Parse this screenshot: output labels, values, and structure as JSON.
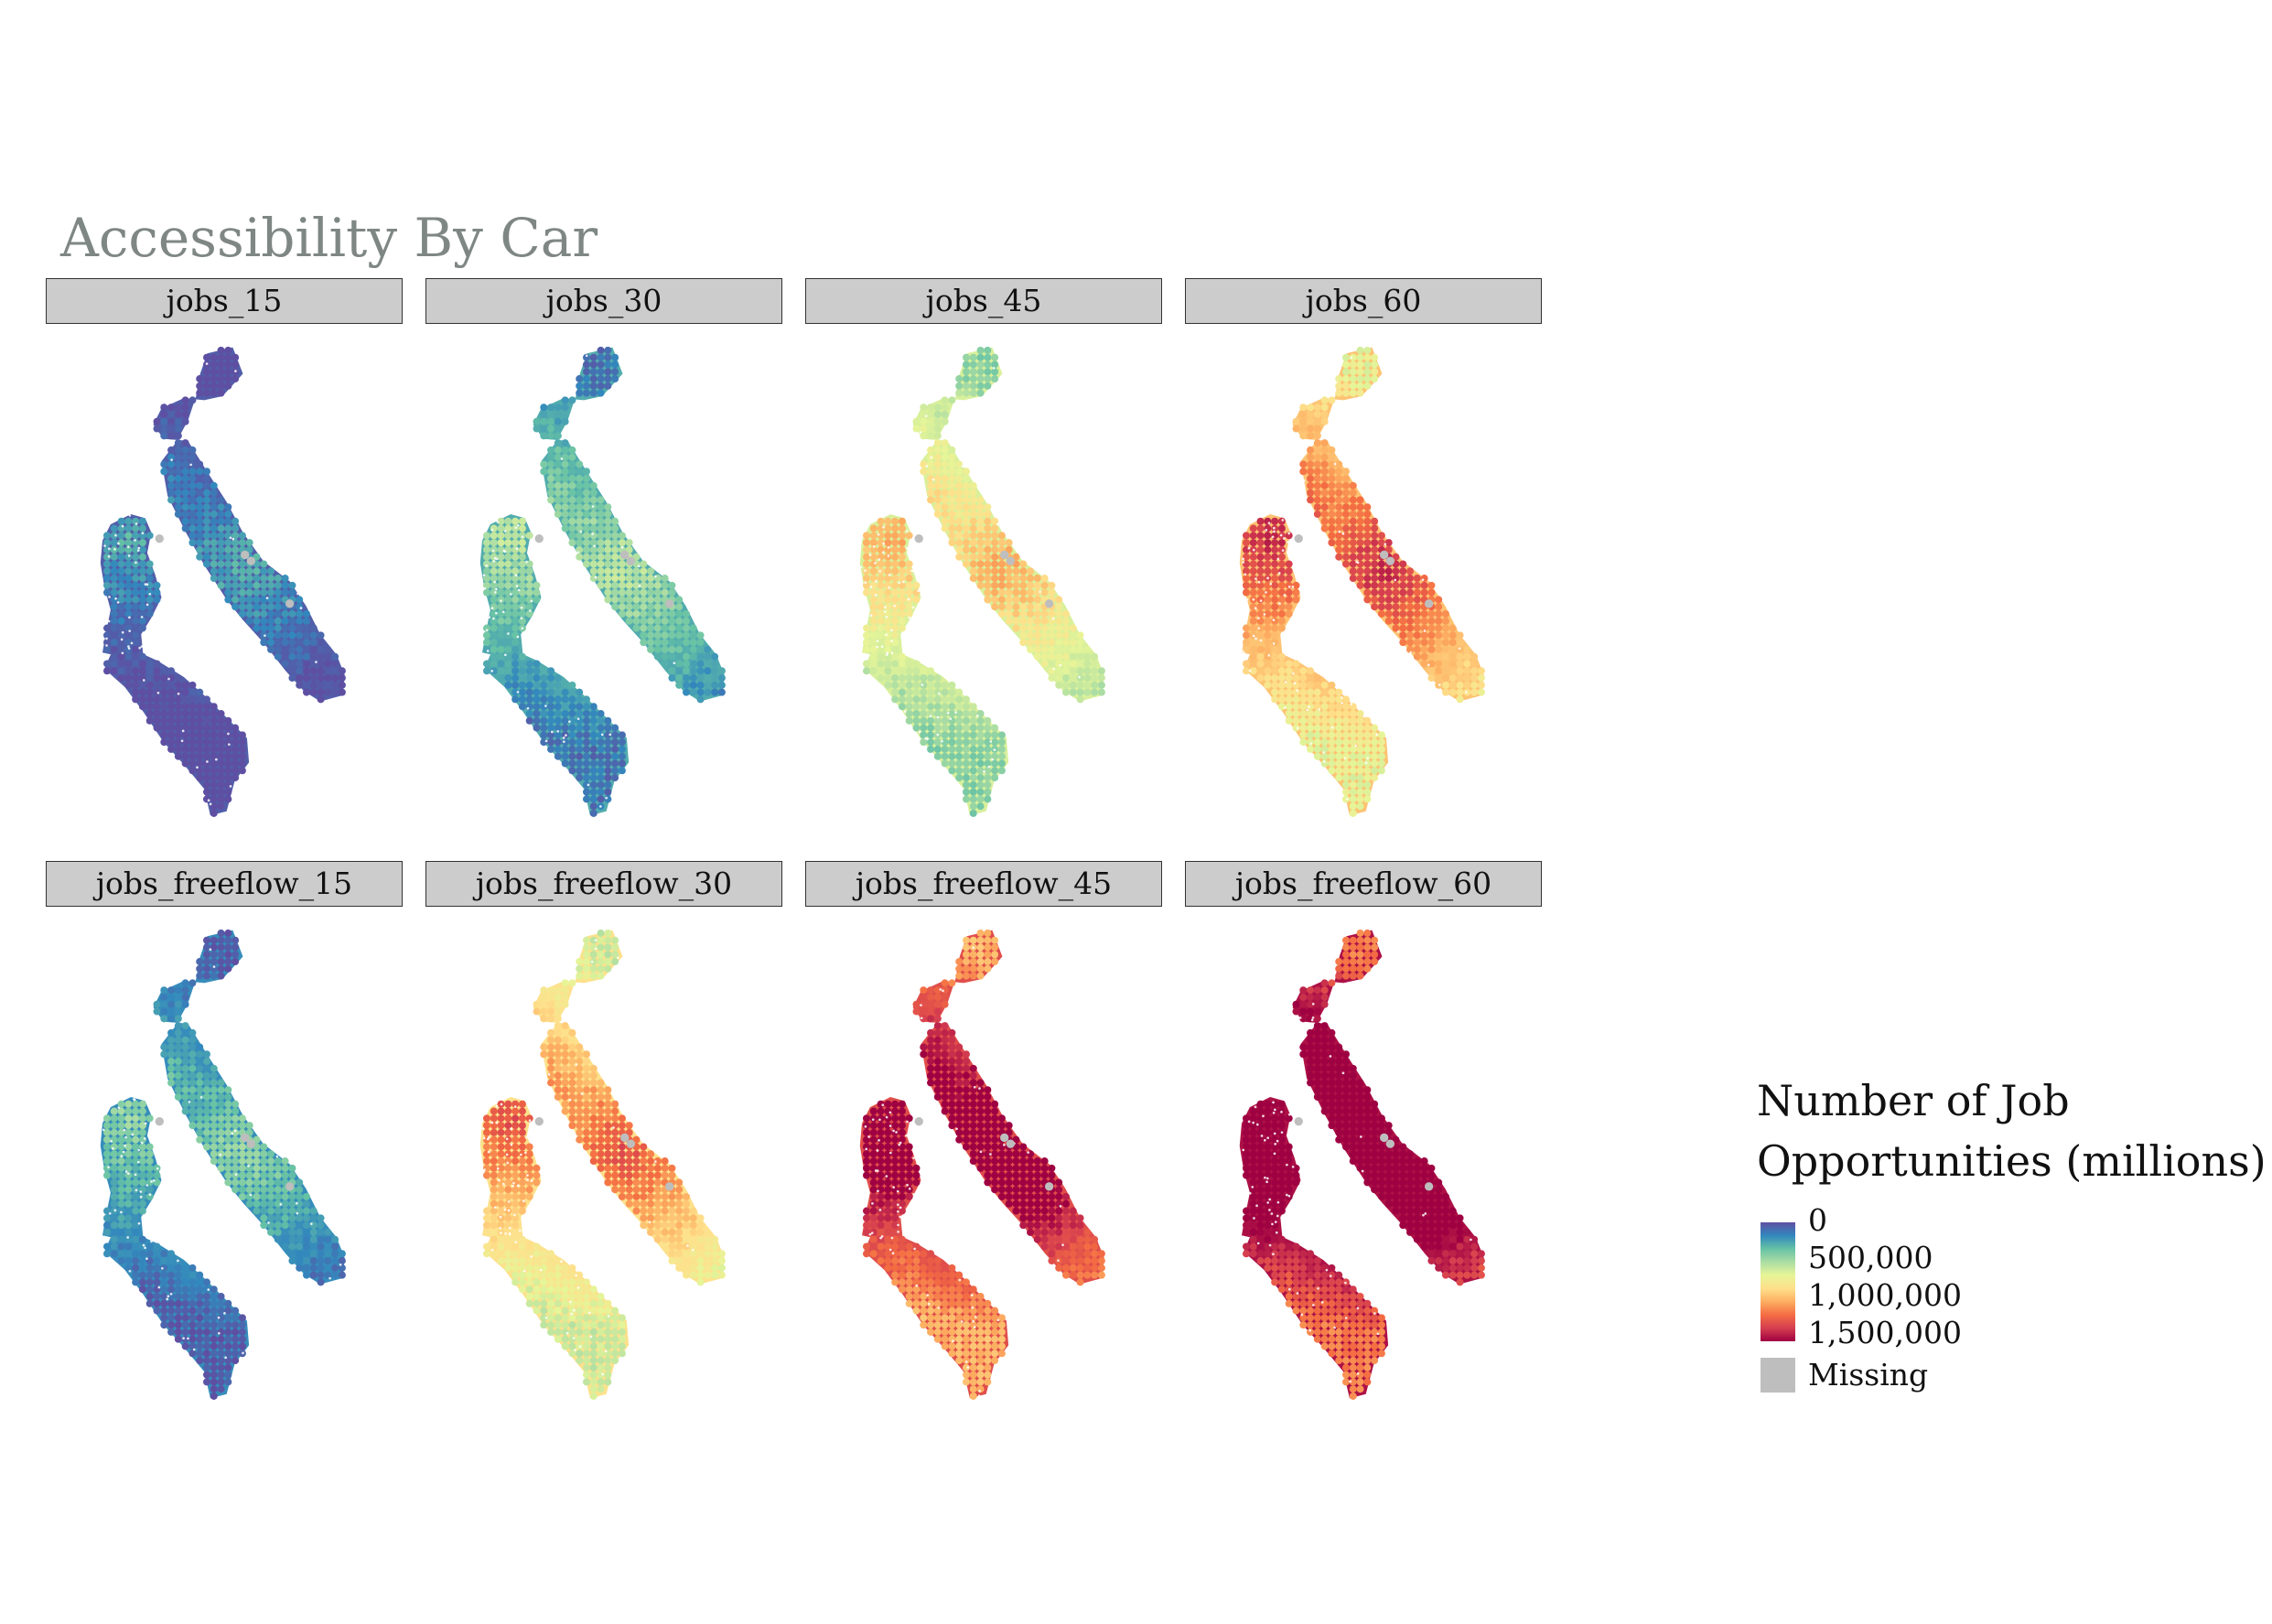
{
  "title": "Accessibility By Car",
  "panels": [
    {
      "label": "jobs_15",
      "level": 0.03
    },
    {
      "label": "jobs_30",
      "level": 0.18
    },
    {
      "label": "jobs_45",
      "level": 0.42
    },
    {
      "label": "jobs_60",
      "level": 0.62
    },
    {
      "label": "jobs_freeflow_15",
      "level": 0.12
    },
    {
      "label": "jobs_freeflow_30",
      "level": 0.55
    },
    {
      "label": "jobs_freeflow_45",
      "level": 0.85
    },
    {
      "label": "jobs_freeflow_60",
      "level": 0.97
    }
  ],
  "legend": {
    "title_line1": "Number of Job",
    "title_line2": "Opportunities (millions)",
    "breaks": [
      "0",
      "500,000",
      "1,000,000",
      "1,500,000"
    ],
    "missing_label": "Missing",
    "palette": [
      "#5e4fa2",
      "#3288bd",
      "#66c2a5",
      "#abdda4",
      "#e6f598",
      "#fee08b",
      "#fdae61",
      "#f46d43",
      "#d53e4f",
      "#9e0142"
    ],
    "missing_color": "#bebebe"
  }
}
